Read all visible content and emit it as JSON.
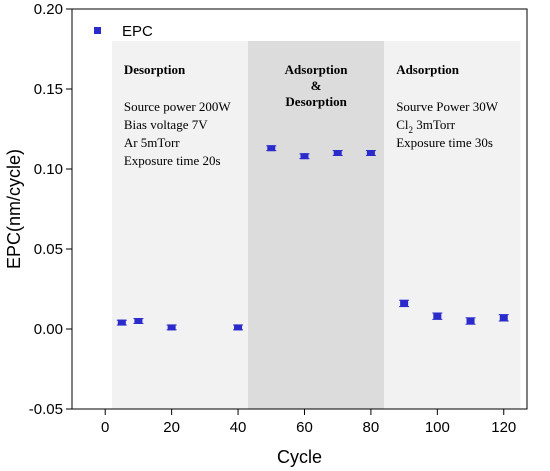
{
  "chart_data": {
    "type": "scatter",
    "xlabel": "Cycle",
    "ylabel": "EPC(nm/cycle)",
    "xlim": [
      -10,
      127
    ],
    "ylim": [
      -0.05,
      0.2
    ],
    "xticks": [
      0,
      20,
      40,
      60,
      80,
      100,
      120
    ],
    "xtick_labels": [
      "0",
      "20",
      "40",
      "60",
      "80",
      "100",
      "120"
    ],
    "yticks": [
      -0.05,
      0,
      0.05,
      0.1,
      0.15,
      0.2
    ],
    "ytick_labels": [
      "-0.05",
      "0.00",
      "0.05",
      "0.10",
      "0.15",
      "0.20"
    ],
    "legend_position": "top-left",
    "series": [
      {
        "name": "EPC",
        "color": "#2b2bcc",
        "marker": "square",
        "x": [
          5,
          10,
          20,
          40,
          50,
          60,
          70,
          80,
          90,
          100,
          110,
          120
        ],
        "y": [
          0.004,
          0.005,
          0.001,
          0.001,
          0.113,
          0.108,
          0.11,
          0.11,
          0.016,
          0.008,
          0.005,
          0.007
        ],
        "error": [
          0.0015,
          0.0015,
          0.0015,
          0.0015,
          0.0015,
          0.0015,
          0.0015,
          0.0015,
          0.002,
          0.002,
          0.002,
          0.002
        ]
      }
    ],
    "regions": [
      {
        "x_range": [
          2,
          43
        ],
        "fill": "#f2f2f2",
        "heading": [
          "Desorption"
        ],
        "lines": [
          {
            "text": "Source power 200W"
          },
          {
            "text": "Bias voltage 7V"
          },
          {
            "text": "Ar 5mTorr"
          },
          {
            "text": "Exposure time 20s"
          }
        ]
      },
      {
        "x_range": [
          43,
          84
        ],
        "fill": "#dcdcdc",
        "heading": [
          "Adsorption",
          "&",
          "Desorption"
        ],
        "lines": []
      },
      {
        "x_range": [
          84,
          125
        ],
        "fill": "#f2f2f2",
        "heading": [
          "Adsorption"
        ],
        "lines": [
          {
            "text": "Sourve Power 30W"
          },
          {
            "text": "Cl",
            "sub": "2",
            "rest": " 3mTorr"
          },
          {
            "text": "Exposure time 30s"
          }
        ]
      }
    ]
  }
}
